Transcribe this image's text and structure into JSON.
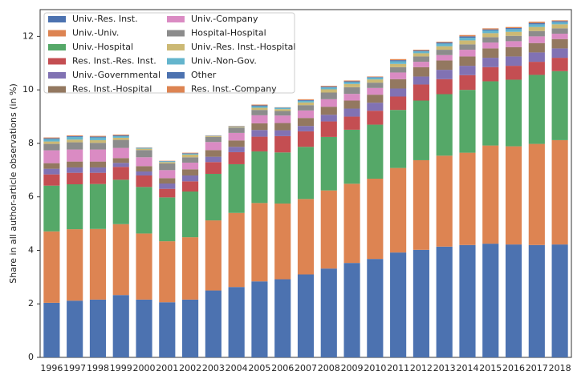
{
  "chart_data": {
    "type": "stacked_bar",
    "ylabel": "Share in all author-article observations (in %)",
    "categories": [
      "1996",
      "1997",
      "1998",
      "1999",
      "2000",
      "2001",
      "2002",
      "2003",
      "2004",
      "2005",
      "2006",
      "2007",
      "2008",
      "2009",
      "2010",
      "2011",
      "2012",
      "2013",
      "2014",
      "2015",
      "2016",
      "2017",
      "2018"
    ],
    "ylim": [
      0,
      13
    ],
    "yticks": [
      0,
      2,
      4,
      6,
      8,
      10,
      12
    ],
    "grid": false,
    "legend": "upper left",
    "series": [
      {
        "name": "Univ.-Res. Inst.",
        "color": "#4c72b0",
        "values": [
          2.04,
          2.12,
          2.16,
          2.33,
          2.16,
          2.06,
          2.16,
          2.5,
          2.63,
          2.84,
          2.92,
          3.1,
          3.32,
          3.53,
          3.68,
          3.92,
          4.02,
          4.14,
          4.2,
          4.25,
          4.22,
          4.2,
          4.22
        ]
      },
      {
        "name": "Univ.-Univ.",
        "color": "#dd8452",
        "values": [
          2.67,
          2.67,
          2.64,
          2.65,
          2.47,
          2.28,
          2.33,
          2.62,
          2.77,
          2.93,
          2.83,
          2.82,
          2.92,
          2.96,
          3.0,
          3.16,
          3.35,
          3.4,
          3.45,
          3.67,
          3.67,
          3.78,
          3.9
        ]
      },
      {
        "name": "Univ.-Hospital",
        "color": "#55a868",
        "values": [
          1.71,
          1.68,
          1.68,
          1.66,
          1.74,
          1.64,
          1.71,
          1.74,
          1.82,
          1.93,
          1.91,
          1.95,
          2.0,
          2.02,
          2.02,
          2.17,
          2.23,
          2.3,
          2.35,
          2.4,
          2.49,
          2.58,
          2.58
        ]
      },
      {
        "name": "Res. Inst.-Res. Inst.",
        "color": "#c44e52",
        "values": [
          0.42,
          0.43,
          0.42,
          0.48,
          0.43,
          0.32,
          0.38,
          0.44,
          0.45,
          0.55,
          0.61,
          0.58,
          0.58,
          0.49,
          0.52,
          0.5,
          0.6,
          0.56,
          0.55,
          0.53,
          0.52,
          0.49,
          0.5
        ]
      },
      {
        "name": "Univ.-Governmental",
        "color": "#8172b3",
        "values": [
          0.21,
          0.2,
          0.2,
          0.15,
          0.15,
          0.2,
          0.22,
          0.2,
          0.2,
          0.25,
          0.22,
          0.2,
          0.25,
          0.3,
          0.3,
          0.3,
          0.3,
          0.35,
          0.35,
          0.35,
          0.35,
          0.35,
          0.35
        ]
      },
      {
        "name": "Res. Inst.-Hospital",
        "color": "#937860",
        "values": [
          0.21,
          0.22,
          0.22,
          0.18,
          0.2,
          0.2,
          0.23,
          0.25,
          0.24,
          0.25,
          0.27,
          0.3,
          0.3,
          0.3,
          0.3,
          0.35,
          0.35,
          0.35,
          0.35,
          0.35,
          0.35,
          0.35,
          0.35
        ]
      },
      {
        "name": "Univ.-Company",
        "color": "#da8bc3",
        "values": [
          0.48,
          0.45,
          0.45,
          0.38,
          0.33,
          0.3,
          0.25,
          0.3,
          0.28,
          0.3,
          0.28,
          0.28,
          0.28,
          0.25,
          0.25,
          0.25,
          0.2,
          0.2,
          0.25,
          0.22,
          0.22,
          0.25,
          0.2
        ]
      },
      {
        "name": "Hospital-Hospital",
        "color": "#8c8c8c",
        "values": [
          0.24,
          0.27,
          0.25,
          0.3,
          0.27,
          0.25,
          0.2,
          0.19,
          0.2,
          0.2,
          0.17,
          0.2,
          0.25,
          0.25,
          0.2,
          0.2,
          0.2,
          0.2,
          0.2,
          0.2,
          0.2,
          0.2,
          0.2
        ]
      },
      {
        "name": "Univ.-Res. Inst.-Hospital",
        "color": "#ccb974",
        "values": [
          0.09,
          0.1,
          0.1,
          0.08,
          0.05,
          0.05,
          0.1,
          0.03,
          0.03,
          0.08,
          0.07,
          0.1,
          0.12,
          0.12,
          0.12,
          0.12,
          0.12,
          0.13,
          0.15,
          0.15,
          0.15,
          0.15,
          0.15
        ]
      },
      {
        "name": "Univ.-Non-Gov.",
        "color": "#64b5cd",
        "values": [
          0.09,
          0.1,
          0.1,
          0.06,
          0.03,
          0.03,
          0.03,
          0.01,
          0.01,
          0.06,
          0.05,
          0.06,
          0.07,
          0.07,
          0.07,
          0.1,
          0.07,
          0.1,
          0.1,
          0.1,
          0.1,
          0.1,
          0.08
        ]
      },
      {
        "name": "Other",
        "color": "#4c72b0",
        "values": [
          0.03,
          0.03,
          0.03,
          0.03,
          0.01,
          0.01,
          0.02,
          0.01,
          0.01,
          0.03,
          0.01,
          0.03,
          0.03,
          0.03,
          0.02,
          0.04,
          0.03,
          0.04,
          0.05,
          0.04,
          0.04,
          0.05,
          0.04
        ]
      },
      {
        "name": "Res. Inst.-Company",
        "color": "#dd8452",
        "values": [
          0.03,
          0.03,
          0.03,
          0.03,
          0.01,
          0.01,
          0.02,
          0.01,
          0.01,
          0.03,
          0.01,
          0.03,
          0.03,
          0.03,
          0.02,
          0.04,
          0.03,
          0.03,
          0.05,
          0.04,
          0.04,
          0.05,
          0.03
        ]
      }
    ]
  }
}
